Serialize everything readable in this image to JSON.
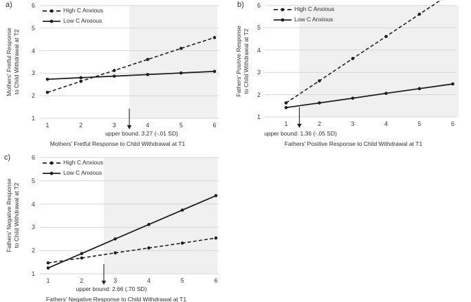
{
  "figure": {
    "background": "#ffffff",
    "legend_items": [
      "High C Anxious",
      "Low C Anxious"
    ]
  },
  "colors": {
    "series_line": "#1f1f1f",
    "gridline": "#d6d6d6",
    "significance_shade": "#f0f0f0",
    "text": "#333333"
  },
  "chart_data": [
    {
      "panel_letter": "a)",
      "type": "line",
      "xlabel": "Mothers' Fretful Response to Child Withdrawal at T1",
      "ylabel": "Mothers' Fretful Response to Child Withdrawal at T2",
      "ylabel_lines": [
        "Mothers' Fretful Response",
        "to Child Withdrawal at T2"
      ],
      "x": [
        1,
        2,
        3,
        4,
        5,
        6
      ],
      "xticks": [
        "1",
        "2",
        "3",
        "4",
        "5",
        "6"
      ],
      "yticks": [
        "1",
        "2",
        "3",
        "4",
        "5",
        "6"
      ],
      "xlim": [
        1,
        6
      ],
      "ylim": [
        1,
        6
      ],
      "grid": "horizontal-only",
      "legend_position": "top-left",
      "series": [
        {
          "name": "High C Anxious",
          "line_style": "dashed",
          "values": [
            2.15,
            2.64,
            3.12,
            3.61,
            4.1,
            4.58
          ]
        },
        {
          "name": "Low C Anxious",
          "line_style": "solid",
          "values": [
            2.73,
            2.8,
            2.87,
            2.94,
            3.01,
            3.08
          ]
        }
      ],
      "annotation": "upper bound: 3.27 (-.01 SD)",
      "shaded_region": {
        "x_start": 3.45,
        "x_end": 6.08
      }
    },
    {
      "panel_letter": "b)",
      "type": "line",
      "xlabel": "Fathers' Positive Response to Child Withdrawal at T1",
      "ylabel": "Fathers' Positive Response to Child Withdrawal at T2",
      "ylabel_lines": [
        "Fathers' Positive Response",
        "to Child Withdrawal at T2"
      ],
      "x": [
        1,
        2,
        3,
        4,
        5,
        6
      ],
      "xticks": [
        "1",
        "2",
        "3",
        "4",
        "5",
        "6"
      ],
      "yticks": [
        "1",
        "2",
        "3",
        "4",
        "5",
        "6"
      ],
      "xlim": [
        1,
        6
      ],
      "ylim": [
        1,
        6
      ],
      "grid": "horizontal-only",
      "legend_position": "top-left",
      "series": [
        {
          "name": "High C Anxious",
          "line_style": "dashed",
          "values": [
            1.63,
            2.62,
            3.62,
            4.61,
            5.61,
            6.6
          ]
        },
        {
          "name": "Low C Anxious",
          "line_style": "solid",
          "values": [
            1.42,
            1.63,
            1.84,
            2.06,
            2.27,
            2.48
          ]
        }
      ],
      "annotation": "upper bound: 1.36 (-.05 SD)",
      "shaded_region": {
        "x_start": 1.4,
        "x_end": 6.18
      }
    },
    {
      "panel_letter": "c)",
      "type": "line",
      "xlabel": "Fathers' Negative Response to Child Withdrawal at T1",
      "ylabel": "Fathers' Negative Response to Child Withdrawal at T2",
      "ylabel_lines": [
        "Fathers' Negative Response",
        "to Child Withdrawal at T2"
      ],
      "x": [
        1,
        2,
        3,
        4,
        5,
        6
      ],
      "xticks": [
        "1",
        "2",
        "3",
        "4",
        "5",
        "6"
      ],
      "yticks": [
        "1",
        "2",
        "3",
        "4",
        "5",
        "6"
      ],
      "xlim": [
        1,
        6
      ],
      "ylim": [
        1,
        6
      ],
      "grid": "horizontal-only",
      "legend_position": "top-left",
      "series": [
        {
          "name": "High C Anxious",
          "line_style": "dashed",
          "values": [
            1.47,
            1.68,
            1.9,
            2.11,
            2.32,
            2.54
          ]
        },
        {
          "name": "Low C Anxious",
          "line_style": "solid",
          "values": [
            1.25,
            1.87,
            2.5,
            3.12,
            3.74,
            4.36
          ]
        }
      ],
      "annotation": "upper bound: 2.66 (.70 SD)",
      "shaded_region": {
        "x_start": 2.66,
        "x_end": 6.05
      }
    }
  ]
}
